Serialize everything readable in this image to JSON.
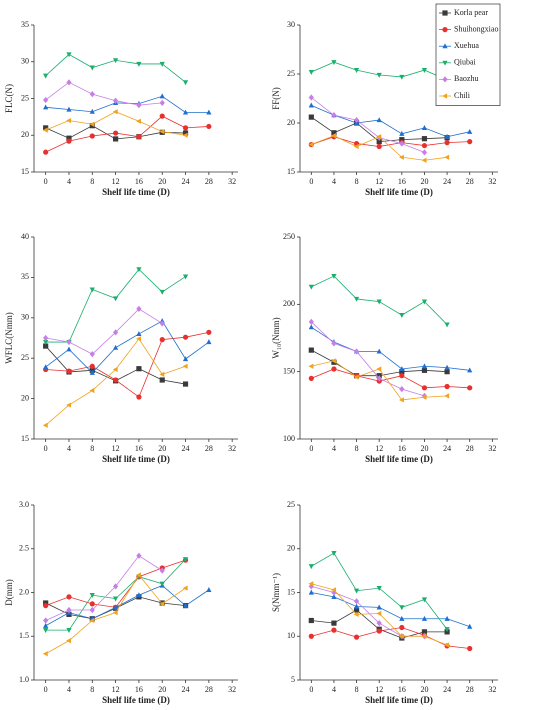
{
  "chart_data": [
    {
      "type": "line",
      "y_label": "FLC(N)",
      "x_label": "Shelf life time (D)",
      "x": [
        0,
        4,
        8,
        12,
        16,
        20,
        24,
        28
      ],
      "xlim": [
        -2,
        33
      ],
      "xticks": [
        0,
        4,
        8,
        12,
        16,
        20,
        24,
        28,
        32
      ],
      "ylim": [
        15,
        35
      ],
      "yticks": [
        15,
        20,
        25,
        30,
        35
      ],
      "series": [
        {
          "name": "Korla pear",
          "color": "#3a3a3a",
          "marker": "square",
          "values": [
            21.0,
            19.6,
            21.3,
            19.5,
            19.8,
            20.4,
            20.3,
            null
          ]
        },
        {
          "name": "Shuihongxiao",
          "color": "#e8312f",
          "marker": "circle",
          "values": [
            17.7,
            19.2,
            19.9,
            20.3,
            19.8,
            22.6,
            21.0,
            21.2
          ]
        },
        {
          "name": "Xuehua",
          "color": "#1f6fd1",
          "marker": "triangle-up",
          "values": [
            23.8,
            23.5,
            23.2,
            24.4,
            24.3,
            25.3,
            23.1,
            23.1
          ]
        },
        {
          "name": "Qiubai",
          "color": "#1aaf6c",
          "marker": "triangle-down",
          "values": [
            28.1,
            31.0,
            29.2,
            30.2,
            29.7,
            29.7,
            27.2,
            null
          ]
        },
        {
          "name": "Baozhu",
          "color": "#c77ee6",
          "marker": "diamond",
          "values": [
            24.8,
            27.2,
            25.6,
            24.7,
            24.1,
            24.4,
            null,
            null
          ]
        },
        {
          "name": "Chili",
          "color": "#f0a31e",
          "marker": "triangle-left",
          "values": [
            20.7,
            22.0,
            21.5,
            23.2,
            21.9,
            20.5,
            20.0,
            null
          ]
        }
      ]
    },
    {
      "type": "line",
      "y_label": "FF(N)",
      "x_label": "Shelf life time (D)",
      "legend": "upper right",
      "x": [
        0,
        4,
        8,
        12,
        16,
        20,
        24,
        28
      ],
      "xlim": [
        -2,
        33
      ],
      "xticks": [
        0,
        4,
        8,
        12,
        16,
        20,
        24,
        28,
        32
      ],
      "ylim": [
        15,
        30
      ],
      "yticks": [
        15,
        20,
        25,
        30
      ],
      "series": [
        {
          "name": "Korla pear",
          "color": "#3a3a3a",
          "marker": "square",
          "values": [
            20.6,
            19.0,
            20.0,
            18.1,
            18.3,
            18.4,
            18.5,
            null
          ]
        },
        {
          "name": "Shuihongxiao",
          "color": "#e8312f",
          "marker": "circle",
          "values": [
            17.8,
            18.6,
            17.9,
            17.6,
            18.0,
            17.7,
            18.0,
            18.1
          ]
        },
        {
          "name": "Xuehua",
          "color": "#1f6fd1",
          "marker": "triangle-up",
          "values": [
            21.8,
            20.8,
            20.0,
            20.3,
            18.9,
            19.5,
            18.6,
            19.1
          ]
        },
        {
          "name": "Qiubai",
          "color": "#1aaf6c",
          "marker": "triangle-down",
          "values": [
            25.2,
            26.2,
            25.4,
            24.9,
            24.7,
            25.4,
            24.4,
            null
          ]
        },
        {
          "name": "Baozhu",
          "color": "#c77ee6",
          "marker": "diamond",
          "values": [
            22.6,
            20.8,
            20.3,
            18.5,
            17.9,
            17.0,
            null,
            null
          ]
        },
        {
          "name": "Chili",
          "color": "#f0a31e",
          "marker": "triangle-left",
          "values": [
            17.8,
            18.7,
            17.6,
            18.6,
            16.5,
            16.2,
            16.5,
            null
          ]
        }
      ]
    },
    {
      "type": "line",
      "y_label": "WFLC(Nmm)",
      "x_label": "Shelf life time (D)",
      "x": [
        0,
        4,
        8,
        12,
        16,
        20,
        24,
        28
      ],
      "xlim": [
        -2,
        33
      ],
      "xticks": [
        0,
        4,
        8,
        12,
        16,
        20,
        24,
        28,
        32
      ],
      "ylim": [
        15,
        40
      ],
      "yticks": [
        15,
        20,
        25,
        30,
        35,
        40
      ],
      "series": [
        {
          "name": "Korla pear",
          "color": "#3a3a3a",
          "marker": "square",
          "values": [
            26.5,
            23.3,
            23.5,
            22.2,
            23.7,
            22.3,
            21.8,
            null
          ]
        },
        {
          "name": "Shuihongxiao",
          "color": "#e8312f",
          "marker": "circle",
          "values": [
            23.6,
            23.4,
            24.0,
            22.3,
            20.2,
            27.3,
            27.6,
            28.2
          ]
        },
        {
          "name": "Xuehua",
          "color": "#1f6fd1",
          "marker": "triangle-up",
          "values": [
            23.9,
            26.1,
            23.2,
            26.3,
            28.0,
            29.6,
            24.9,
            27.0
          ]
        },
        {
          "name": "Qiubai",
          "color": "#1aaf6c",
          "marker": "triangle-down",
          "values": [
            27.0,
            27.0,
            33.5,
            32.4,
            36.0,
            33.2,
            35.1,
            null
          ]
        },
        {
          "name": "Baozhu",
          "color": "#c77ee6",
          "marker": "diamond",
          "values": [
            27.5,
            27.0,
            25.5,
            28.2,
            31.1,
            29.3,
            null,
            null
          ]
        },
        {
          "name": "Chili",
          "color": "#f0a31e",
          "marker": "triangle-left",
          "values": [
            16.7,
            19.2,
            21.0,
            23.6,
            27.4,
            23.0,
            24.0,
            null
          ]
        }
      ]
    },
    {
      "type": "line",
      "y_label": "W₁₀(Nmm)",
      "x_label": "Shelf life time (D)",
      "x": [
        0,
        4,
        8,
        12,
        16,
        20,
        24,
        28
      ],
      "xlim": [
        -2,
        33
      ],
      "xticks": [
        0,
        4,
        8,
        12,
        16,
        20,
        24,
        28,
        32
      ],
      "ylim": [
        100,
        250
      ],
      "yticks": [
        100,
        150,
        200,
        250
      ],
      "series": [
        {
          "name": "Korla pear",
          "color": "#3a3a3a",
          "marker": "square",
          "values": [
            166,
            157,
            147,
            147,
            150,
            151,
            150,
            null
          ]
        },
        {
          "name": "Shuihongxiao",
          "color": "#e8312f",
          "marker": "circle",
          "values": [
            145,
            152,
            147,
            143,
            147,
            138,
            139,
            138
          ]
        },
        {
          "name": "Xuehua",
          "color": "#1f6fd1",
          "marker": "triangle-up",
          "values": [
            183,
            172,
            165,
            165,
            152,
            154,
            153,
            151
          ]
        },
        {
          "name": "Qiubai",
          "color": "#1aaf6c",
          "marker": "triangle-down",
          "values": [
            213,
            221,
            204,
            202,
            192,
            202,
            185,
            null
          ]
        },
        {
          "name": "Baozhu",
          "color": "#c77ee6",
          "marker": "diamond",
          "values": [
            187,
            171,
            165,
            145,
            137,
            132,
            null,
            null
          ]
        },
        {
          "name": "Chili",
          "color": "#f0a31e",
          "marker": "triangle-left",
          "values": [
            154,
            158,
            146,
            152,
            129,
            131,
            132,
            null
          ]
        }
      ]
    },
    {
      "type": "line",
      "y_label": "D(mm)",
      "x_label": "Shelf life time (D)",
      "x": [
        0,
        4,
        8,
        12,
        16,
        20,
        24,
        28
      ],
      "xlim": [
        -2,
        33
      ],
      "xticks": [
        0,
        4,
        8,
        12,
        16,
        20,
        24,
        28,
        32
      ],
      "ylim": [
        1.0,
        3.0
      ],
      "yticks": [
        {
          "value": 1,
          "label": "1.0"
        },
        1.5,
        {
          "value": 2,
          "label": "2.0"
        },
        2.5,
        {
          "value": 3,
          "label": "3.0"
        }
      ],
      "series": [
        {
          "name": "Korla pear",
          "color": "#3a3a3a",
          "marker": "square",
          "values": [
            1.88,
            1.75,
            1.7,
            1.82,
            1.95,
            1.88,
            1.85,
            null
          ]
        },
        {
          "name": "Shuihongxiao",
          "color": "#e8312f",
          "marker": "circle",
          "values": [
            1.85,
            1.95,
            1.87,
            1.83,
            2.18,
            2.28,
            2.37,
            null
          ]
        },
        {
          "name": "Xuehua",
          "color": "#1f6fd1",
          "marker": "triangle-up",
          "values": [
            1.62,
            1.77,
            1.7,
            1.83,
            1.97,
            2.08,
            1.85,
            2.03
          ]
        },
        {
          "name": "Qiubai",
          "color": "#1aaf6c",
          "marker": "triangle-down",
          "values": [
            1.57,
            1.57,
            1.97,
            1.93,
            2.18,
            2.1,
            2.38,
            null
          ]
        },
        {
          "name": "Baozhu",
          "color": "#c77ee6",
          "marker": "diamond",
          "values": [
            1.68,
            1.8,
            1.8,
            2.07,
            2.42,
            2.25,
            null,
            null
          ]
        },
        {
          "name": "Chili",
          "color": "#f0a31e",
          "marker": "triangle-left",
          "values": [
            1.3,
            1.45,
            1.68,
            1.77,
            2.2,
            1.87,
            2.05,
            null
          ]
        }
      ]
    },
    {
      "type": "line",
      "y_label": "S(Nmm⁻¹)",
      "x_label": "Shelf life time (D)",
      "x": [
        0,
        4,
        8,
        12,
        16,
        20,
        24,
        28
      ],
      "xlim": [
        -2,
        33
      ],
      "xticks": [
        0,
        4,
        8,
        12,
        16,
        20,
        24,
        28,
        32
      ],
      "ylim": [
        5,
        25
      ],
      "yticks": [
        5,
        10,
        15,
        20,
        25
      ],
      "series": [
        {
          "name": "Korla pear",
          "color": "#3a3a3a",
          "marker": "square",
          "values": [
            11.8,
            11.5,
            13.0,
            10.8,
            9.8,
            10.5,
            10.5,
            null
          ]
        },
        {
          "name": "Shuihongxiao",
          "color": "#e8312f",
          "marker": "circle",
          "values": [
            10.0,
            10.7,
            9.9,
            10.6,
            11.0,
            10.1,
            8.9,
            8.6
          ]
        },
        {
          "name": "Xuehua",
          "color": "#1f6fd1",
          "marker": "triangle-up",
          "values": [
            15.0,
            14.5,
            13.4,
            13.3,
            12.0,
            12.0,
            12.0,
            11.1
          ]
        },
        {
          "name": "Qiubai",
          "color": "#1aaf6c",
          "marker": "triangle-down",
          "values": [
            18.0,
            19.5,
            15.2,
            15.5,
            13.3,
            14.2,
            10.8,
            null
          ]
        },
        {
          "name": "Baozhu",
          "color": "#c77ee6",
          "marker": "diamond",
          "values": [
            15.7,
            15.0,
            14.0,
            11.5,
            10.0,
            10.0,
            null,
            null
          ]
        },
        {
          "name": "Chili",
          "color": "#f0a31e",
          "marker": "triangle-left",
          "values": [
            16.0,
            15.3,
            12.5,
            12.6,
            10.0,
            10.0,
            9.0,
            null
          ]
        }
      ]
    }
  ]
}
